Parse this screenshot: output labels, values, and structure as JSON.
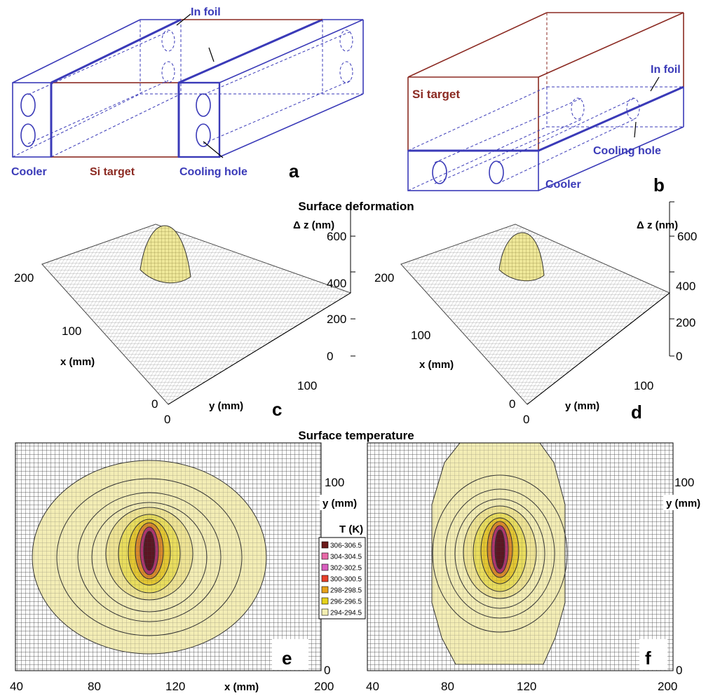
{
  "figure_a": {
    "label_cooler": "Cooler",
    "label_target": "Si  target",
    "label_hole": "Cooling hole",
    "label_foil": "In foil",
    "panel": "a"
  },
  "figure_b": {
    "label_cooler": "Cooler",
    "label_target": "Si  target",
    "label_hole": "Cooling hole",
    "label_foil": "In foil",
    "panel": "b"
  },
  "deformation": {
    "title": "Surface deformation",
    "z_label": "Δ z (nm)",
    "x_label": "x (mm)",
    "y_label": "y (mm)",
    "z_ticks": [
      "600",
      "400",
      "200",
      "0"
    ],
    "x_ticks": [
      "200",
      "100",
      "0"
    ],
    "y_ticks": [
      "0",
      "100"
    ],
    "panel_c": "c",
    "panel_d": "d"
  },
  "temperature": {
    "title": "Surface temperature",
    "x_label": "x (mm)",
    "y_label": "y (mm)",
    "x_ticks": [
      "40",
      "80",
      "120",
      "200"
    ],
    "y_ticks": [
      "100",
      "0"
    ],
    "panel_e": "e",
    "panel_f": "f",
    "legend_title": "T (K)",
    "legend": [
      {
        "label": "306-306.5",
        "color": "#6b1a1a"
      },
      {
        "label": "304-304.5",
        "color": "#e86aa8"
      },
      {
        "label": "302-302.5",
        "color": "#d95fbf"
      },
      {
        "label": "300-300.5",
        "color": "#e8402a"
      },
      {
        "label": "298-298.5",
        "color": "#e8a21a"
      },
      {
        "label": "296-296.5",
        "color": "#e6d21a"
      },
      {
        "label": "294-294.5",
        "color": "#f4efb2"
      }
    ]
  },
  "colors": {
    "cooler_blue": "#3a3ab8",
    "target_red": "#8b2a22",
    "surface_yellow": "#efe89a"
  }
}
